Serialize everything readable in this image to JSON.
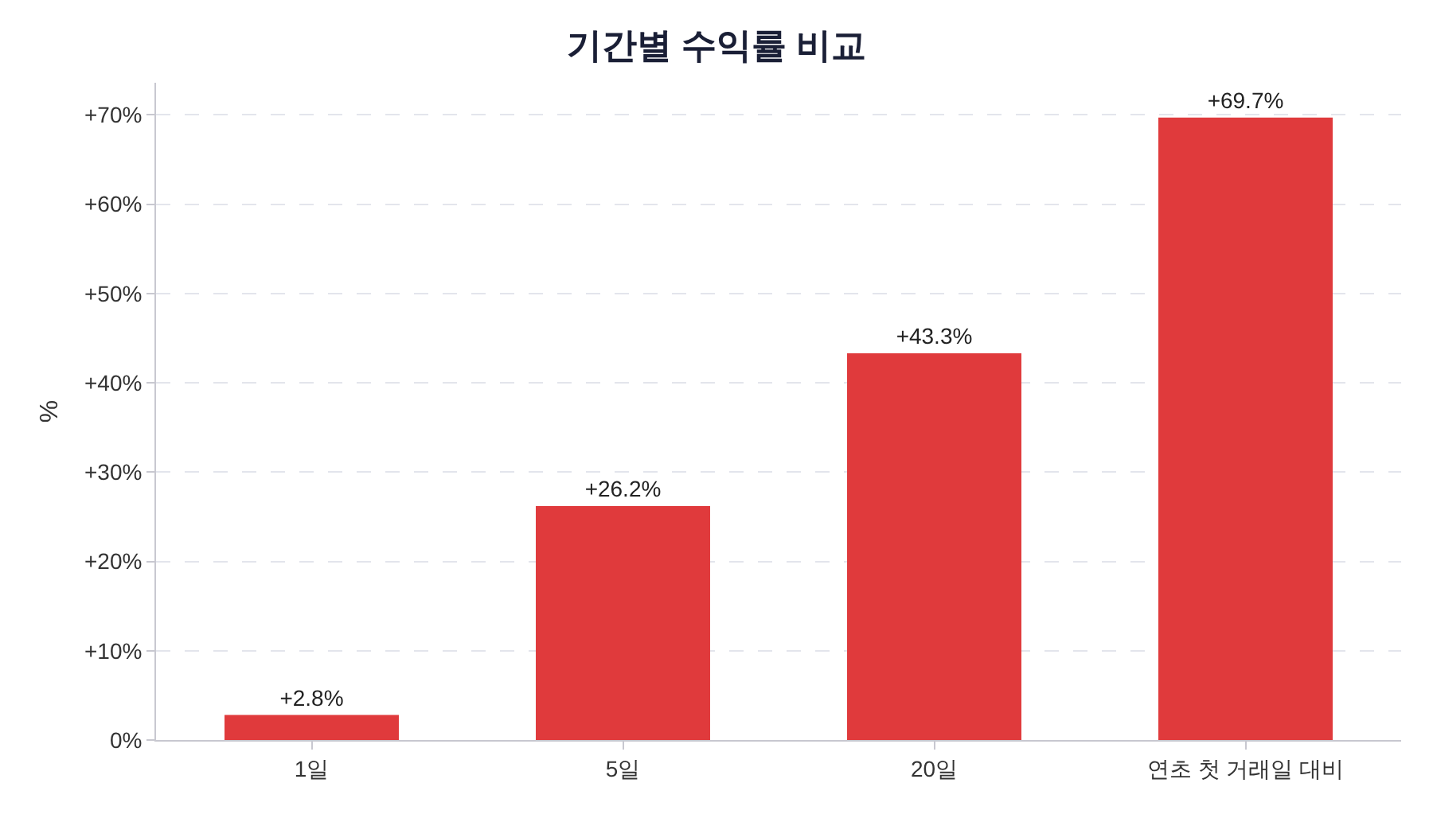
{
  "chart_data": {
    "type": "bar",
    "title": "기간별 수익률 비교",
    "ylabel": "%",
    "categories": [
      "1일",
      "5일",
      "20일",
      "연초 첫 거래일 대비"
    ],
    "values": [
      2.8,
      26.2,
      43.3,
      69.7
    ],
    "value_labels": [
      "+2.8%",
      "+26.2%",
      "+43.3%",
      "+69.7%"
    ],
    "color": "#e03a3c",
    "ylim": [
      0,
      73.6
    ],
    "yticks": [
      {
        "value": 0,
        "label": "0%"
      },
      {
        "value": 10,
        "label": "+10%"
      },
      {
        "value": 20,
        "label": "+20%"
      },
      {
        "value": 30,
        "label": "+30%"
      },
      {
        "value": 40,
        "label": "+40%"
      },
      {
        "value": 50,
        "label": "+50%"
      },
      {
        "value": 60,
        "label": "+60%"
      },
      {
        "value": 70,
        "label": "+70%"
      }
    ],
    "grid": "y"
  }
}
